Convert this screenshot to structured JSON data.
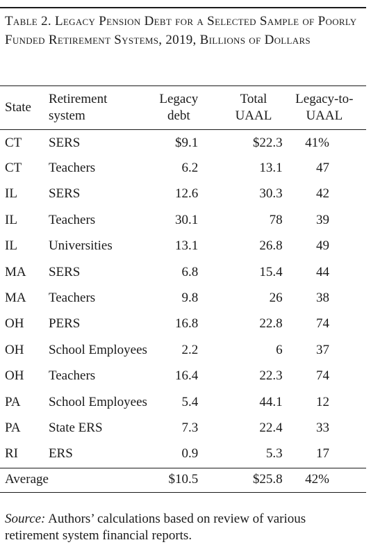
{
  "title": "Table 2. Legacy Pension Debt for a Selected Sample of Poorly Funded Retirement Systems, 2019, Billions of Dollars",
  "headers": {
    "state": "State",
    "system_line1": "Retirement",
    "system_line2": "system",
    "legacy_line1": "Legacy",
    "legacy_line2": "debt",
    "total_line1": "Total",
    "total_line2": "UAAL",
    "ratio_line1": "Legacy-to-",
    "ratio_line2": "UAAL"
  },
  "rows": [
    {
      "state": "CT",
      "system": "SERS",
      "legacy": "$9.1",
      "total": "$22.3",
      "ratio": "41%"
    },
    {
      "state": "CT",
      "system": "Teachers",
      "legacy": "6.2",
      "total": "13.1",
      "ratio": "47"
    },
    {
      "state": "IL",
      "system": "SERS",
      "legacy": "12.6",
      "total": "30.3",
      "ratio": "42"
    },
    {
      "state": "IL",
      "system": "Teachers",
      "legacy": "30.1",
      "total": "78",
      "ratio": "39"
    },
    {
      "state": "IL",
      "system": "Universities",
      "legacy": "13.1",
      "total": "26.8",
      "ratio": "49"
    },
    {
      "state": "MA",
      "system": "SERS",
      "legacy": "6.8",
      "total": "15.4",
      "ratio": "44"
    },
    {
      "state": "MA",
      "system": "Teachers",
      "legacy": "9.8",
      "total": "26",
      "ratio": "38"
    },
    {
      "state": "OH",
      "system": "PERS",
      "legacy": "16.8",
      "total": "22.8",
      "ratio": "74"
    },
    {
      "state": "OH",
      "system": "School Employees",
      "legacy": "2.2",
      "total": "6",
      "ratio": "37"
    },
    {
      "state": "OH",
      "system": "Teachers",
      "legacy": "16.4",
      "total": "22.3",
      "ratio": "74"
    },
    {
      "state": "PA",
      "system": "School Employees",
      "legacy": "5.4",
      "total": "44.1",
      "ratio": "12"
    },
    {
      "state": "PA",
      "system": "State ERS",
      "legacy": "7.3",
      "total": "22.4",
      "ratio": "33"
    },
    {
      "state": "RI",
      "system": "ERS",
      "legacy": "0.9",
      "total": "5.3",
      "ratio": "17"
    }
  ],
  "average": {
    "label": "Average",
    "legacy": "$10.5",
    "total": "$25.8",
    "ratio": "42%"
  },
  "source": {
    "label": "Source:",
    "text": " Authors’ calculations based on review of various retirement system financial reports."
  }
}
